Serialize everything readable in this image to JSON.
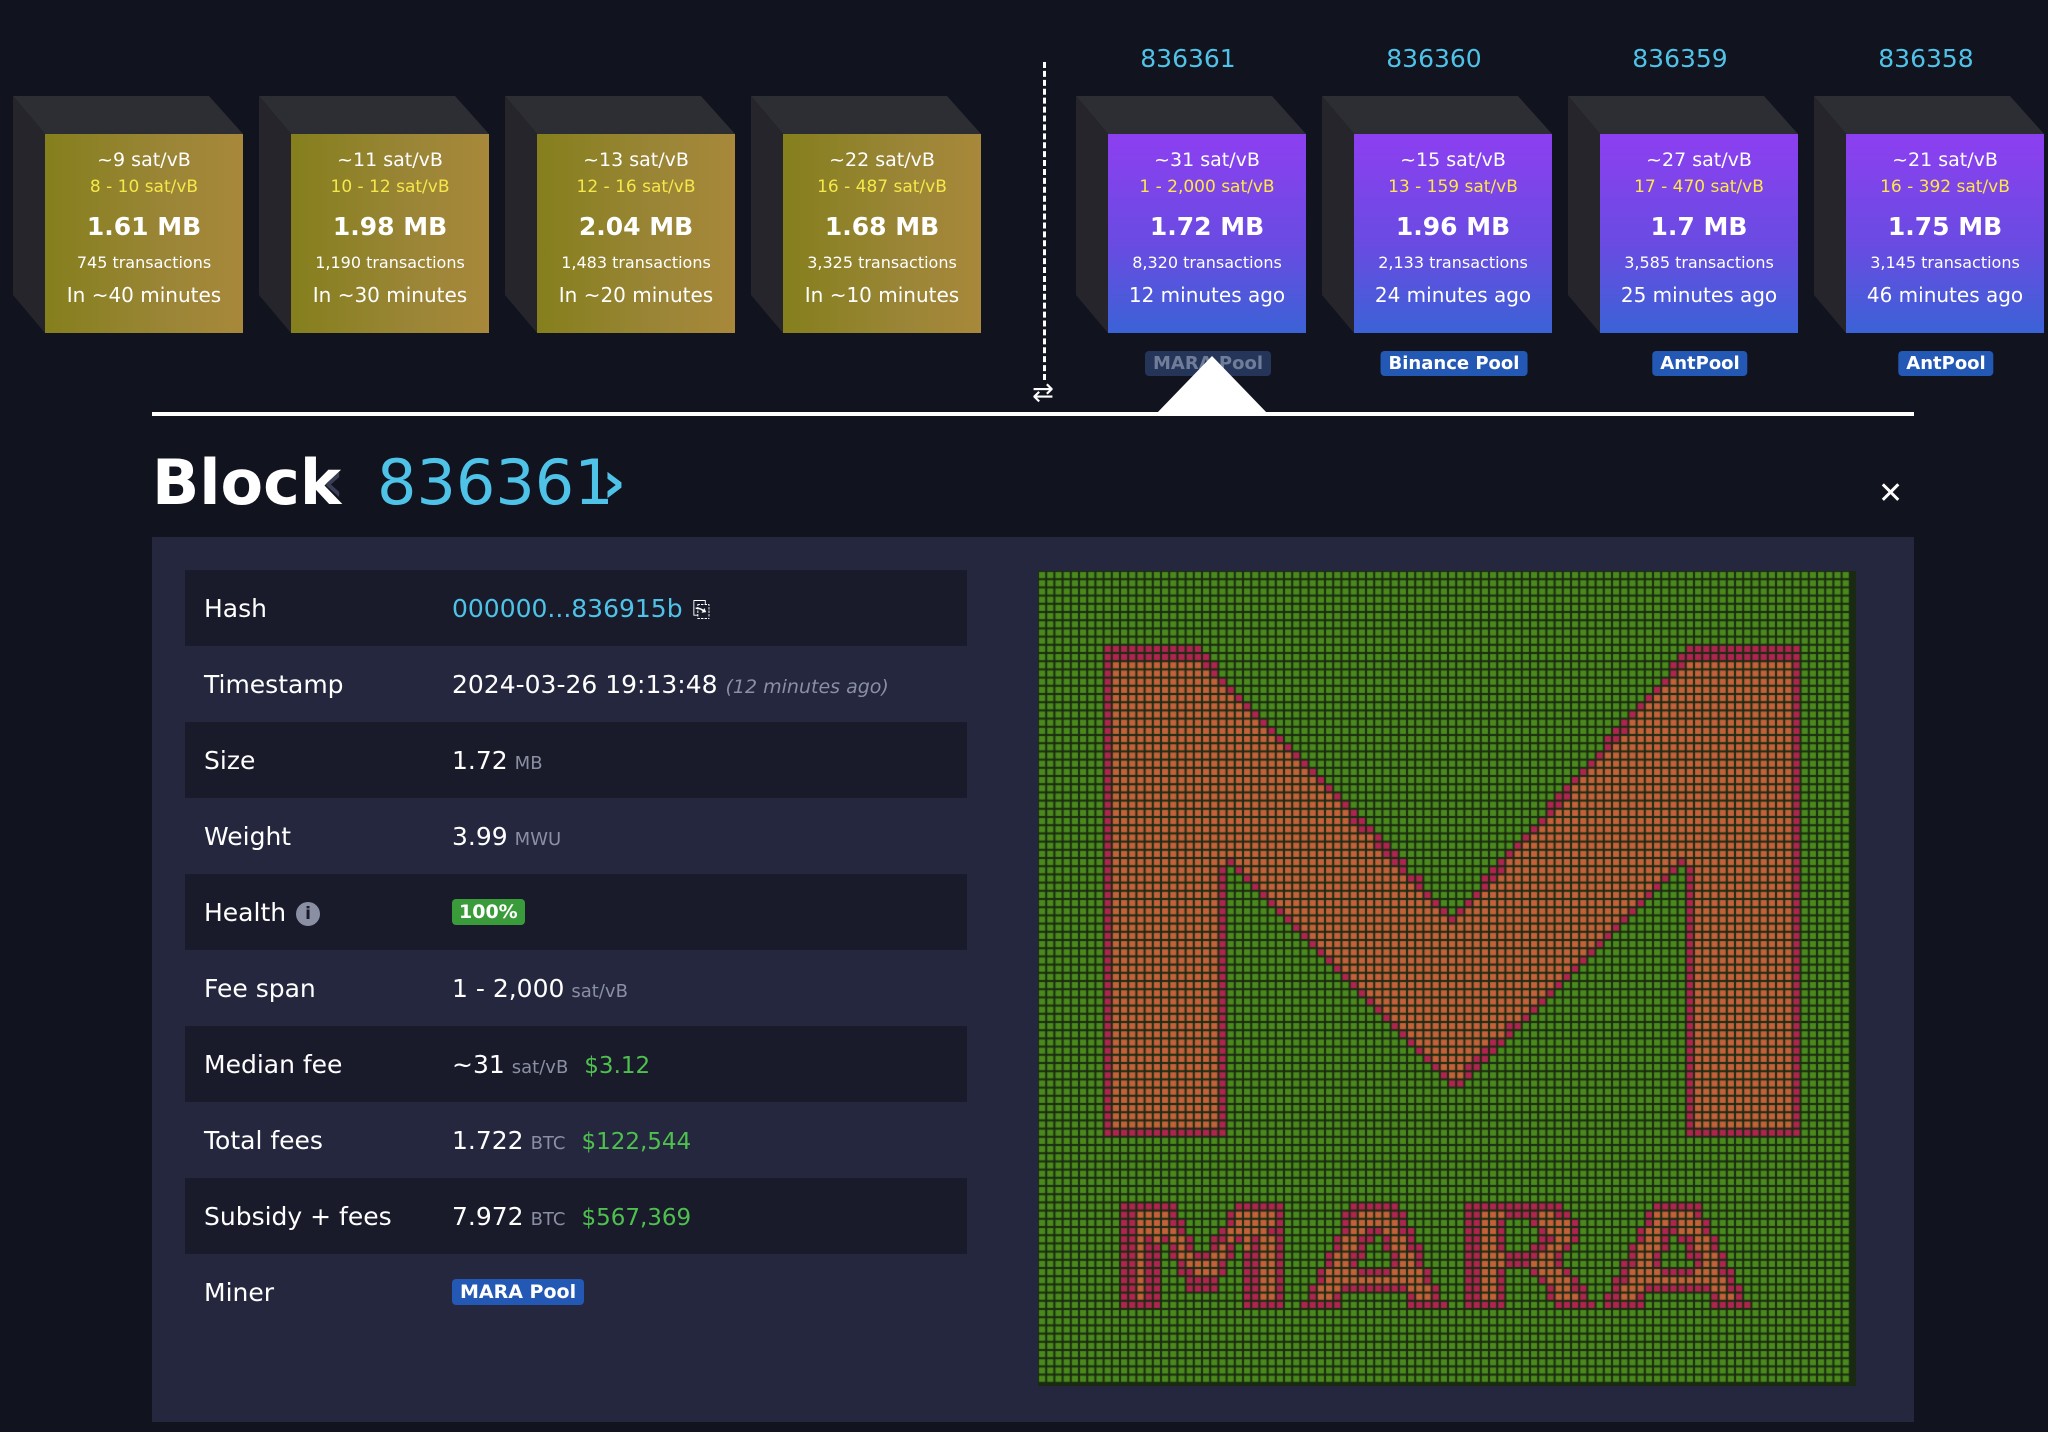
{
  "pending_blocks": [
    {
      "median_fee": "~9 sat/vB",
      "fee_span": "8 - 10 sat/vB",
      "size": "1.61 MB",
      "tx_count": "745 transactions",
      "eta": "In ~40 minutes"
    },
    {
      "median_fee": "~11 sat/vB",
      "fee_span": "10 - 12 sat/vB",
      "size": "1.98 MB",
      "tx_count": "1,190 transactions",
      "eta": "In ~30 minutes"
    },
    {
      "median_fee": "~13 sat/vB",
      "fee_span": "12 - 16 sat/vB",
      "size": "2.04 MB",
      "tx_count": "1,483 transactions",
      "eta": "In ~20 minutes"
    },
    {
      "median_fee": "~22 sat/vB",
      "fee_span": "16 - 487 sat/vB",
      "size": "1.68 MB",
      "tx_count": "3,325 transactions",
      "eta": "In ~10 minutes"
    }
  ],
  "mined_blocks": [
    {
      "height": "836361",
      "median_fee": "~31 sat/vB",
      "fee_span": "1 - 2,000 sat/vB",
      "size": "1.72 MB",
      "tx_count": "8,320 transactions",
      "age": "12 minutes ago",
      "pool": "MARA Pool"
    },
    {
      "height": "836360",
      "median_fee": "~15 sat/vB",
      "fee_span": "13 - 159 sat/vB",
      "size": "1.96 MB",
      "tx_count": "2,133 transactions",
      "age": "24 minutes ago",
      "pool": "Binance Pool"
    },
    {
      "height": "836359",
      "median_fee": "~27 sat/vB",
      "fee_span": "17 - 470 sat/vB",
      "size": "1.7 MB",
      "tx_count": "3,585 transactions",
      "age": "25 minutes ago",
      "pool": "AntPool"
    },
    {
      "height": "836358",
      "median_fee": "~21 sat/vB",
      "fee_span": "16 - 392 sat/vB",
      "size": "1.75 MB",
      "tx_count": "3,145 transactions",
      "age": "46 minutes ago",
      "pool": "AntPool"
    }
  ],
  "header": {
    "title": "Block",
    "height": "836361",
    "prev_symbol": "‹",
    "next_symbol": "›",
    "close_symbol": "✕",
    "swap_symbol": "⇄"
  },
  "details": {
    "hash_label": "Hash",
    "hash_value": "000000...836915b",
    "timestamp_label": "Timestamp",
    "timestamp_value": "2024-03-26 19:13:48",
    "timestamp_relative": "(12 minutes ago)",
    "size_label": "Size",
    "size_value": "1.72",
    "size_unit": "MB",
    "weight_label": "Weight",
    "weight_value": "3.99",
    "weight_unit": "MWU",
    "health_label": "Health",
    "health_value": "100%",
    "fee_span_label": "Fee span",
    "fee_span_value": "1 - 2,000",
    "fee_span_unit": "sat/vB",
    "median_fee_label": "Median fee",
    "median_fee_value": "~31",
    "median_fee_unit": "sat/vB",
    "median_fee_fiat": "$3.12",
    "total_fees_label": "Total fees",
    "total_fees_value": "1.722",
    "total_fees_unit": "BTC",
    "total_fees_fiat": "$122,544",
    "subsidy_label": "Subsidy + fees",
    "subsidy_value": "7.972",
    "subsidy_unit": "BTC",
    "subsidy_fiat": "$567,369",
    "miner_label": "Miner",
    "miner_value": "MARA Pool"
  },
  "icons": {
    "copy": "copy-icon",
    "info": "info-icon",
    "close": "close-icon",
    "swap": "swap-icon"
  },
  "colors": {
    "accent": "#4fc2e8",
    "pending_block": "#8f8228",
    "mined_block_top": "#8d3ff0",
    "mined_block_bottom": "#3b62d6",
    "fiat_green": "#4ec04e",
    "pool_badge": "#2358b5",
    "viz_background": "#4a8a1c",
    "viz_logo": "#c3613a",
    "viz_outline": "#b0254f"
  }
}
